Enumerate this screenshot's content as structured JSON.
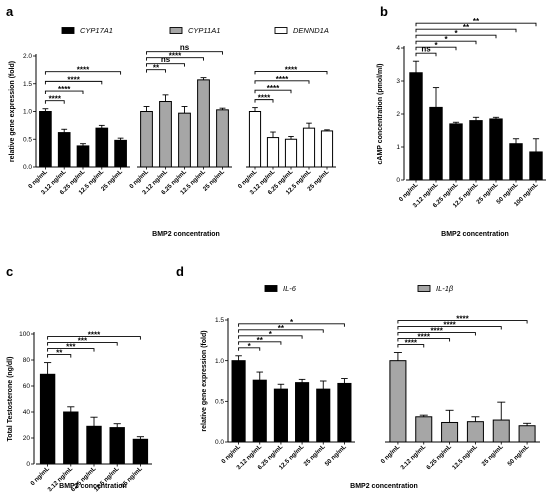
{
  "panels": [
    {
      "letter": "a"
    },
    {
      "letter": "b"
    },
    {
      "letter": "c"
    },
    {
      "letter": "d"
    }
  ],
  "chart_data": [
    {
      "id": "a",
      "type": "bar",
      "xlabel": "BMP2 concentration",
      "ylabel": "relative gene expression (fold)",
      "ylim": [
        0,
        2.0
      ],
      "yticks": [
        "0.0",
        "0.5",
        "1.0",
        "1.5",
        "2.0"
      ],
      "categories": [
        "0 ng/mL",
        "3.12 ng/mL",
        "6.25 ng/mL",
        "12.5 ng/mL",
        "25 ng/mL"
      ],
      "series": [
        {
          "name": "CYP17A1",
          "color": "#000000",
          "values": [
            1.0,
            0.62,
            0.38,
            0.7,
            0.48
          ],
          "errors": [
            0.05,
            0.06,
            0.04,
            0.05,
            0.04
          ]
        },
        {
          "name": "CYP11A1",
          "color": "#a6a6a6",
          "values": [
            1.0,
            1.18,
            0.97,
            1.57,
            1.03
          ],
          "errors": [
            0.09,
            0.12,
            0.12,
            0.04,
            0.03
          ]
        },
        {
          "name": "DENND1A",
          "color": "#ffffff",
          "values": [
            1.0,
            0.53,
            0.5,
            0.7,
            0.65
          ],
          "errors": [
            0.07,
            0.1,
            0.05,
            0.09,
            0.02
          ]
        }
      ],
      "significance": [
        {
          "series": 0,
          "to": 1,
          "label": "****"
        },
        {
          "series": 0,
          "to": 2,
          "label": "****"
        },
        {
          "series": 0,
          "to": 3,
          "label": "****"
        },
        {
          "series": 0,
          "to": 4,
          "label": "****"
        },
        {
          "series": 1,
          "to": 1,
          "label": "**"
        },
        {
          "series": 1,
          "to": 2,
          "label": "ns"
        },
        {
          "series": 1,
          "to": 3,
          "label": "****"
        },
        {
          "series": 1,
          "to": 4,
          "label": "ns"
        },
        {
          "series": 2,
          "to": 1,
          "label": "****"
        },
        {
          "series": 2,
          "to": 2,
          "label": "****"
        },
        {
          "series": 2,
          "to": 3,
          "label": "****"
        },
        {
          "series": 2,
          "to": 4,
          "label": "****"
        }
      ]
    },
    {
      "id": "b",
      "type": "bar",
      "xlabel": "BMP2 concentration",
      "ylabel": "cAMP concentration (pmol/ml)",
      "ylim": [
        0,
        4
      ],
      "yticks": [
        "0",
        "1",
        "2",
        "3",
        "4"
      ],
      "categories": [
        "0 ng/mL",
        "3.12 ng/mL",
        "6.25 ng/mL",
        "12.5 ng/mL",
        "25 ng/mL",
        "50 ng/mL",
        "100 ng/mL"
      ],
      "values": [
        3.25,
        2.2,
        1.7,
        1.8,
        1.85,
        1.1,
        0.85
      ],
      "errors": [
        0.35,
        0.6,
        0.05,
        0.1,
        0.05,
        0.15,
        0.4
      ],
      "color": "#000000",
      "significance": [
        {
          "to": 1,
          "label": "ns"
        },
        {
          "to": 2,
          "label": "*"
        },
        {
          "to": 3,
          "label": "*"
        },
        {
          "to": 4,
          "label": "*"
        },
        {
          "to": 5,
          "label": "**"
        },
        {
          "to": 6,
          "label": "**"
        }
      ]
    },
    {
      "id": "c",
      "type": "bar",
      "xlabel": "BMP2 concentration",
      "ylabel": "Total Testosterone (ng/dl)",
      "ylim": [
        0,
        100
      ],
      "yticks": [
        "0",
        "20",
        "40",
        "60",
        "80",
        "100"
      ],
      "categories": [
        "0 ng/mL",
        "3.12 ng/mL",
        "6.25 ng/mL",
        "12.5 ng/mL",
        "25 ng/mL"
      ],
      "values": [
        69,
        40,
        29,
        28,
        19
      ],
      "errors": [
        9,
        4,
        7,
        3,
        2
      ],
      "color": "#000000",
      "significance": [
        {
          "to": 1,
          "label": "**"
        },
        {
          "to": 2,
          "label": "***"
        },
        {
          "to": 3,
          "label": "***"
        },
        {
          "to": 4,
          "label": "****"
        }
      ]
    },
    {
      "id": "d",
      "type": "bar",
      "xlabel": "BMP2 concentration",
      "ylabel": "relative gene expression (fold)",
      "ylim": [
        0,
        1.5
      ],
      "yticks": [
        "0.0",
        "0.5",
        "1.0",
        "1.5"
      ],
      "categories": [
        "0 ng/mL",
        "3.12 ng/mL",
        "6.25 ng/mL",
        "12.5 ng/mL",
        "25 ng/mL",
        "50 ng/mL"
      ],
      "series": [
        {
          "name": "IL-6",
          "color": "#000000",
          "values": [
            1.0,
            0.76,
            0.65,
            0.73,
            0.65,
            0.72
          ],
          "errors": [
            0.06,
            0.1,
            0.06,
            0.04,
            0.1,
            0.06
          ]
        },
        {
          "name": "IL-1β",
          "color": "#a6a6a6",
          "values": [
            1.0,
            0.31,
            0.24,
            0.25,
            0.27,
            0.2
          ],
          "errors": [
            0.1,
            0.02,
            0.15,
            0.06,
            0.22,
            0.03
          ]
        }
      ],
      "significance": [
        {
          "series": 0,
          "to": 1,
          "label": "*"
        },
        {
          "series": 0,
          "to": 2,
          "label": "**"
        },
        {
          "series": 0,
          "to": 3,
          "label": "*"
        },
        {
          "series": 0,
          "to": 4,
          "label": "**"
        },
        {
          "series": 0,
          "to": 5,
          "label": "*"
        },
        {
          "series": 1,
          "to": 1,
          "label": "****"
        },
        {
          "series": 1,
          "to": 2,
          "label": "****"
        },
        {
          "series": 1,
          "to": 3,
          "label": "****"
        },
        {
          "series": 1,
          "to": 4,
          "label": "****"
        },
        {
          "series": 1,
          "to": 5,
          "label": "****"
        }
      ]
    }
  ]
}
